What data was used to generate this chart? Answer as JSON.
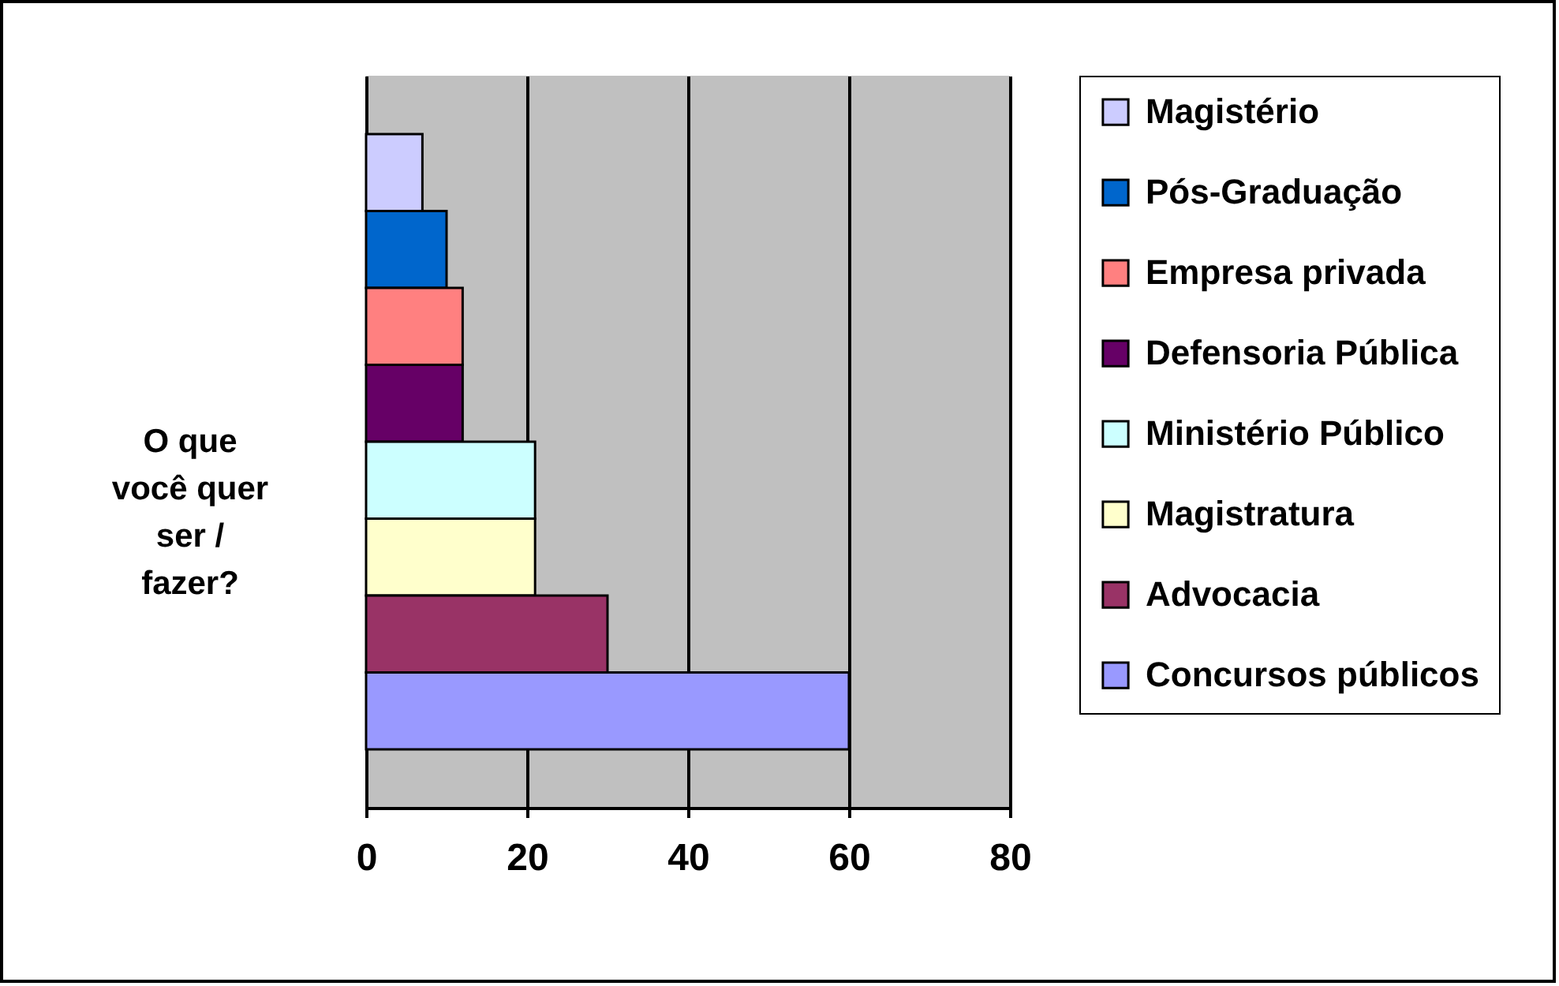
{
  "chart_data": {
    "type": "bar",
    "orientation": "horizontal",
    "ylabel": "O que você quer ser / fazer?",
    "categories": [
      null
    ],
    "series": [
      {
        "name": "Magistério",
        "color": "#ccccff",
        "values": [
          7
        ]
      },
      {
        "name": "Pós-Graduação",
        "color": "#0066cc",
        "values": [
          10
        ]
      },
      {
        "name": "Empresa privada",
        "color": "#ff8080",
        "values": [
          12
        ]
      },
      {
        "name": "Defensoria Pública",
        "color": "#660066",
        "values": [
          12
        ]
      },
      {
        "name": "Ministério Público",
        "color": "#ccffff",
        "values": [
          21
        ]
      },
      {
        "name": "Magistratura",
        "color": "#ffffcc",
        "values": [
          21
        ]
      },
      {
        "name": "Advocacia",
        "color": "#993366",
        "values": [
          30
        ]
      },
      {
        "name": "Concursos públicos",
        "color": "#9999ff",
        "values": [
          60
        ]
      }
    ],
    "xlim": [
      0,
      80
    ],
    "xticks": [
      0,
      20,
      40,
      60,
      80
    ],
    "grid": "x",
    "legend": "right"
  }
}
